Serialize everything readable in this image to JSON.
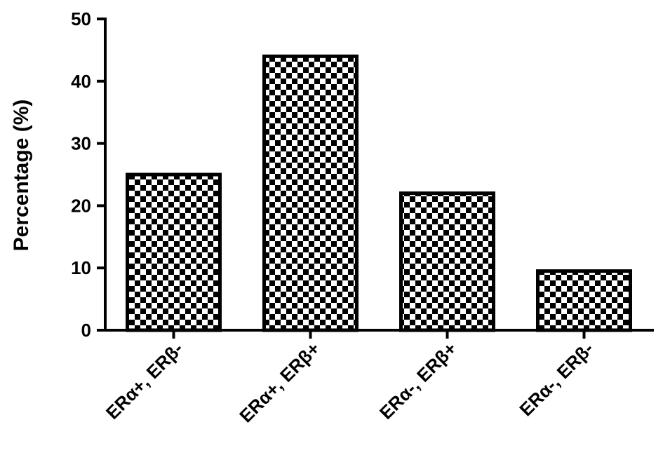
{
  "chart_data": {
    "type": "bar",
    "title": "",
    "xlabel": "",
    "ylabel": "Percentage (%)",
    "ylim": [
      0,
      50
    ],
    "yticks": [
      0,
      10,
      20,
      30,
      40,
      50
    ],
    "categories": [
      "ERα+, ERβ-",
      "ERα+, ERβ+",
      "ERα-, ERβ+",
      "ERα-, ERβ-"
    ],
    "values": [
      25,
      44,
      22,
      9.5
    ],
    "bar_fill": "checkerboard",
    "colors": {
      "bar_pattern_dark": "#000000",
      "bar_pattern_light": "#ffffff",
      "axis": "#000000"
    },
    "grid": false,
    "legend": "none"
  }
}
